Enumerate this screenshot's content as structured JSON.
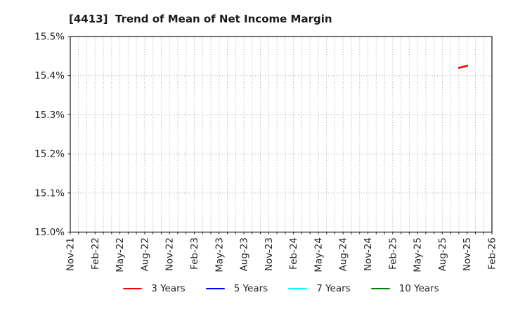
{
  "figure": {
    "title": "[4413]  Trend of Mean of Net Income Margin",
    "background_color": "#ffffff"
  },
  "chart_data": {
    "type": "line",
    "title": "[4413]  Trend of Mean of Net Income Margin",
    "xlabel": "",
    "ylabel": "",
    "grid": "dotted",
    "grid_color": "#aaaaaa",
    "axis_color": "#262626",
    "legend_position": "bottom-center",
    "x_axis": {
      "start": "Nov-21",
      "end": "Feb-26",
      "total_months": 51,
      "minor_grid_every_months": 1,
      "tick_labels": [
        "Nov-21",
        "Feb-22",
        "May-22",
        "Aug-22",
        "Nov-22",
        "Feb-23",
        "May-23",
        "Aug-23",
        "Nov-23",
        "Feb-24",
        "May-24",
        "Aug-24",
        "Nov-24",
        "Feb-25",
        "May-25",
        "Aug-25",
        "Nov-25",
        "Feb-26"
      ],
      "tick_month_indices": [
        0,
        3,
        6,
        9,
        12,
        15,
        18,
        21,
        24,
        27,
        30,
        33,
        36,
        39,
        42,
        45,
        48,
        51
      ],
      "tick_label_rotation_deg": 90
    },
    "y_axis": {
      "min": 15.0,
      "max": 15.5,
      "tick_values": [
        15.0,
        15.1,
        15.2,
        15.3,
        15.4,
        15.5
      ],
      "tick_labels": [
        "15.0%",
        "15.1%",
        "15.2%",
        "15.3%",
        "15.4%",
        "15.5%"
      ]
    },
    "series": [
      {
        "name": "3 Years",
        "color": "#ff0000",
        "points": [
          {
            "x": "Oct-25",
            "month_index": 47,
            "y": 15.42
          },
          {
            "x": "Nov-25",
            "month_index": 48,
            "y": 15.425
          }
        ]
      },
      {
        "name": "5 Years",
        "color": "#0000ff",
        "points": []
      },
      {
        "name": "7 Years",
        "color": "#00ffff",
        "points": []
      },
      {
        "name": "10 Years",
        "color": "#008000",
        "points": []
      }
    ]
  }
}
